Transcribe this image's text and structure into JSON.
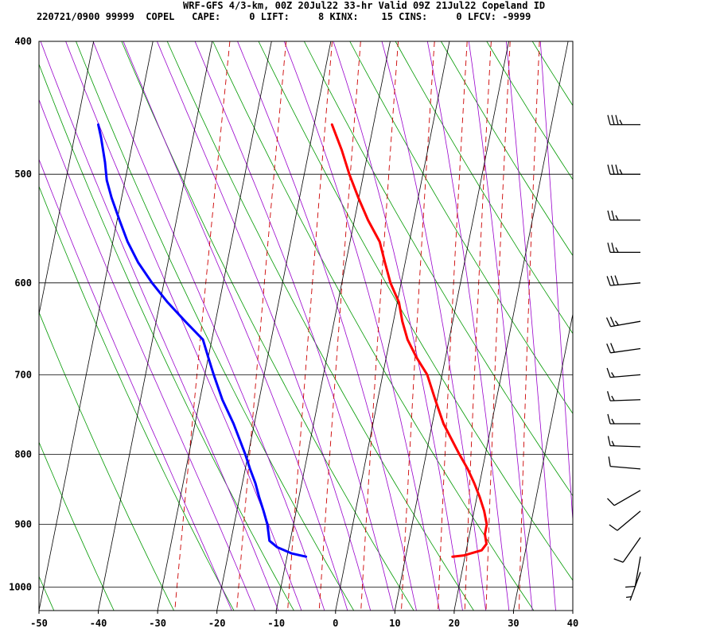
{
  "header": {
    "line1": "WRF-GFS 4/3-km, 00Z 20Jul22 33-hr Valid 09Z 21Jul22 Copeland ID",
    "line2": "220721/0900 99999  COPEL   CAPE:     0 LIFT:     8 KINX:    15 CINS:     0 LFCV: -9999"
  },
  "chart_data": {
    "type": "line",
    "subtype": "skew-t log-p sounding",
    "x_axis": {
      "label": "",
      "range": [
        -50,
        40
      ],
      "ticks": [
        -50,
        -40,
        -30,
        -20,
        -10,
        0,
        10,
        20,
        30,
        40
      ]
    },
    "y_axis": {
      "label": "",
      "range": [
        1040,
        400
      ],
      "scale": "log",
      "ticks": [
        400,
        500,
        600,
        700,
        800,
        900,
        1000
      ]
    },
    "grid": true,
    "series": [
      {
        "color": "#ff0000",
        "points": [
          [
            950,
            17.9
          ],
          [
            948,
            19.8
          ],
          [
            940,
            22.6
          ],
          [
            930,
            23.2
          ],
          [
            915,
            22.6
          ],
          [
            900,
            22.6
          ],
          [
            880,
            21.7
          ],
          [
            860,
            20.5
          ],
          [
            840,
            19.1
          ],
          [
            820,
            17.5
          ],
          [
            800,
            15.6
          ],
          [
            760,
            11.9
          ],
          [
            730,
            9.7
          ],
          [
            700,
            7.5
          ],
          [
            680,
            5.1
          ],
          [
            660,
            3.0
          ],
          [
            640,
            1.5
          ],
          [
            620,
            0.3
          ],
          [
            600,
            -1.8
          ],
          [
            580,
            -3.4
          ],
          [
            560,
            -5.0
          ],
          [
            540,
            -7.7
          ],
          [
            520,
            -10.1
          ],
          [
            500,
            -12.4
          ],
          [
            480,
            -14.5
          ],
          [
            460,
            -17.0
          ]
        ]
      },
      {
        "color": "#0000ff",
        "points": [
          [
            950,
            -6.8
          ],
          [
            945,
            -9.3
          ],
          [
            935,
            -12.0
          ],
          [
            925,
            -13.5
          ],
          [
            900,
            -14.4
          ],
          [
            880,
            -15.5
          ],
          [
            860,
            -16.7
          ],
          [
            840,
            -17.8
          ],
          [
            820,
            -19.2
          ],
          [
            800,
            -20.5
          ],
          [
            760,
            -23.5
          ],
          [
            730,
            -26.2
          ],
          [
            700,
            -28.5
          ],
          [
            680,
            -30.0
          ],
          [
            660,
            -31.5
          ],
          [
            640,
            -35.1
          ],
          [
            620,
            -38.7
          ],
          [
            600,
            -42.0
          ],
          [
            580,
            -45.0
          ],
          [
            560,
            -47.5
          ],
          [
            540,
            -49.6
          ],
          [
            520,
            -51.7
          ],
          [
            505,
            -53.1
          ],
          [
            490,
            -54.0
          ],
          [
            470,
            -55.5
          ],
          [
            460,
            -56.4
          ]
        ]
      }
    ],
    "wind_barbs": [
      {
        "pressure": 460,
        "speed_kt": 35,
        "dir": 270
      },
      {
        "pressure": 500,
        "speed_kt": 35,
        "dir": 270
      },
      {
        "pressure": 540,
        "speed_kt": 25,
        "dir": 270
      },
      {
        "pressure": 570,
        "speed_kt": 25,
        "dir": 270
      },
      {
        "pressure": 600,
        "speed_kt": 30,
        "dir": 265
      },
      {
        "pressure": 640,
        "speed_kt": 25,
        "dir": 260
      },
      {
        "pressure": 670,
        "speed_kt": 20,
        "dir": 262
      },
      {
        "pressure": 700,
        "speed_kt": 15,
        "dir": 265
      },
      {
        "pressure": 730,
        "speed_kt": 15,
        "dir": 268
      },
      {
        "pressure": 760,
        "speed_kt": 15,
        "dir": 270
      },
      {
        "pressure": 790,
        "speed_kt": 15,
        "dir": 272
      },
      {
        "pressure": 820,
        "speed_kt": 10,
        "dir": 275
      },
      {
        "pressure": 850,
        "speed_kt": 10,
        "dir": 240
      },
      {
        "pressure": 880,
        "speed_kt": 10,
        "dir": 230
      },
      {
        "pressure": 920,
        "speed_kt": 10,
        "dir": 215
      },
      {
        "pressure": 950,
        "speed_kt": 10,
        "dir": 190
      },
      {
        "pressure": 975,
        "speed_kt": 5,
        "dir": 200
      }
    ]
  },
  "colors": {
    "isotherm_grid": "#000000",
    "dry_adiabat": "#009900",
    "moist_adiabat": "#9900cc",
    "mixing_ratio": "#cc0000",
    "temperature": "#ff0000",
    "dewpoint": "#0000ff"
  }
}
